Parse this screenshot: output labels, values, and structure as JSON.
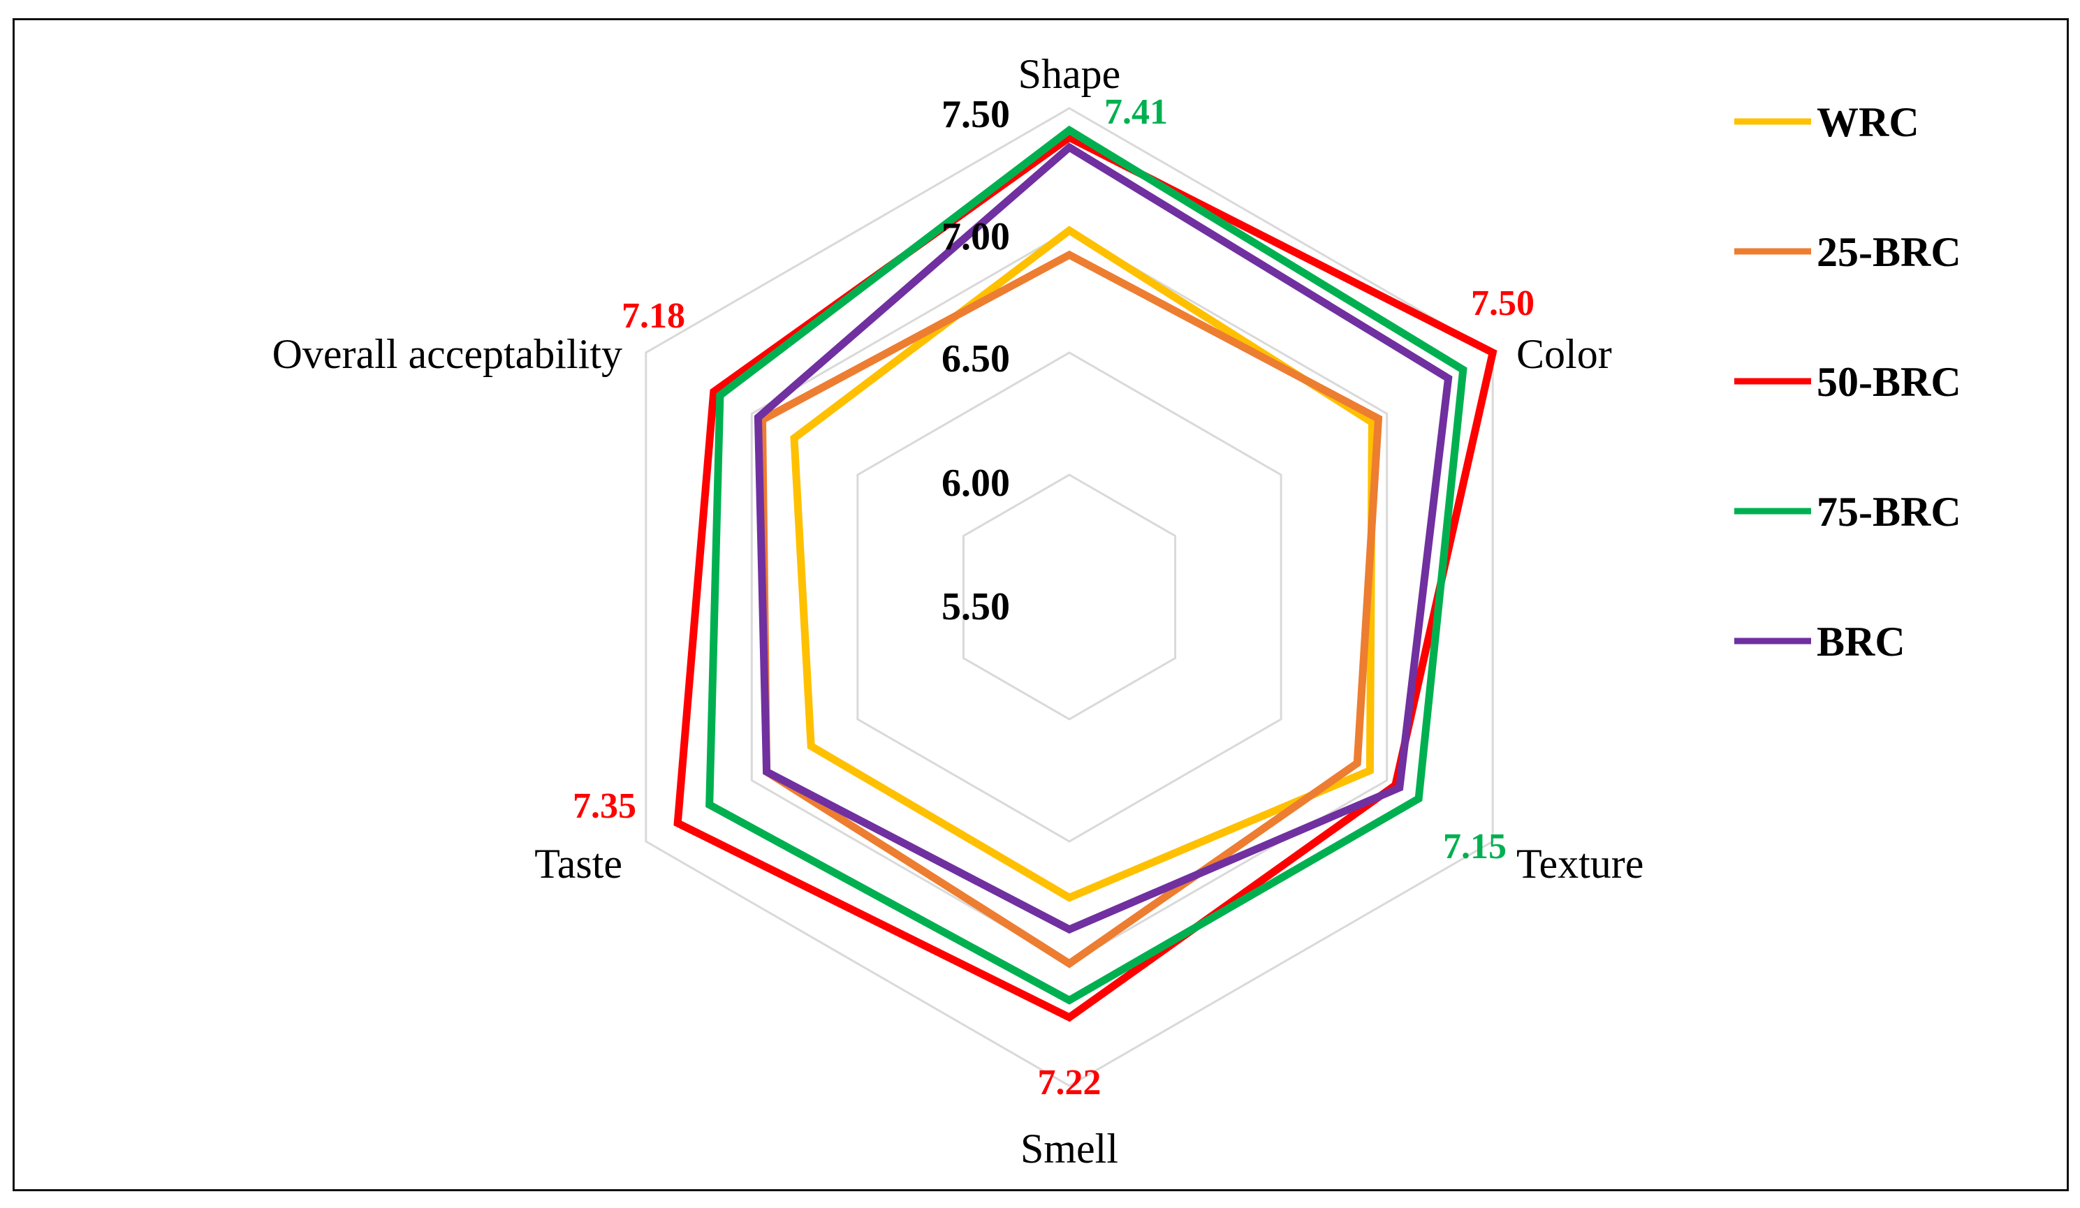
{
  "chart_data": {
    "type": "radar",
    "axes": [
      "Shape",
      "Color",
      "Texture",
      "Smell",
      "Taste",
      "Overall acceptability"
    ],
    "rlim": [
      5.5,
      7.5
    ],
    "ticks": [
      "5.50",
      "6.00",
      "6.50",
      "7.00",
      "7.50"
    ],
    "tick_values": [
      5.5,
      6.0,
      6.5,
      7.0,
      7.5
    ],
    "grid": true,
    "legend_position": "right",
    "series": [
      {
        "name": "WRC",
        "color": "#FFC000",
        "values": [
          7.0,
          6.93,
          6.92,
          6.73,
          6.72,
          6.8
        ]
      },
      {
        "name": "25-BRC",
        "color": "#ED7D31",
        "values": [
          6.9,
          6.96,
          6.86,
          7.0,
          6.93,
          6.95
        ]
      },
      {
        "name": "50-BRC",
        "color": "#FF0000",
        "values": [
          7.38,
          7.5,
          7.04,
          7.22,
          7.35,
          7.18
        ]
      },
      {
        "name": "75-BRC",
        "color": "#00B050",
        "values": [
          7.41,
          7.36,
          7.15,
          7.15,
          7.2,
          7.15
        ]
      },
      {
        "name": "BRC",
        "color": "#7030A0",
        "values": [
          7.34,
          7.29,
          7.06,
          6.86,
          6.93,
          6.97
        ]
      }
    ],
    "annotations": [
      {
        "text": "7.41",
        "color": "#00B050",
        "axis": "Shape"
      },
      {
        "text": "7.50",
        "color": "#FF0000",
        "axis": "Color"
      },
      {
        "text": "7.15",
        "color": "#00B050",
        "axis": "Texture"
      },
      {
        "text": "7.22",
        "color": "#FF0000",
        "axis": "Smell"
      },
      {
        "text": "7.35",
        "color": "#FF0000",
        "axis": "Taste"
      },
      {
        "text": "7.18",
        "color": "#FF0000",
        "axis": "Overall acceptability"
      }
    ]
  }
}
